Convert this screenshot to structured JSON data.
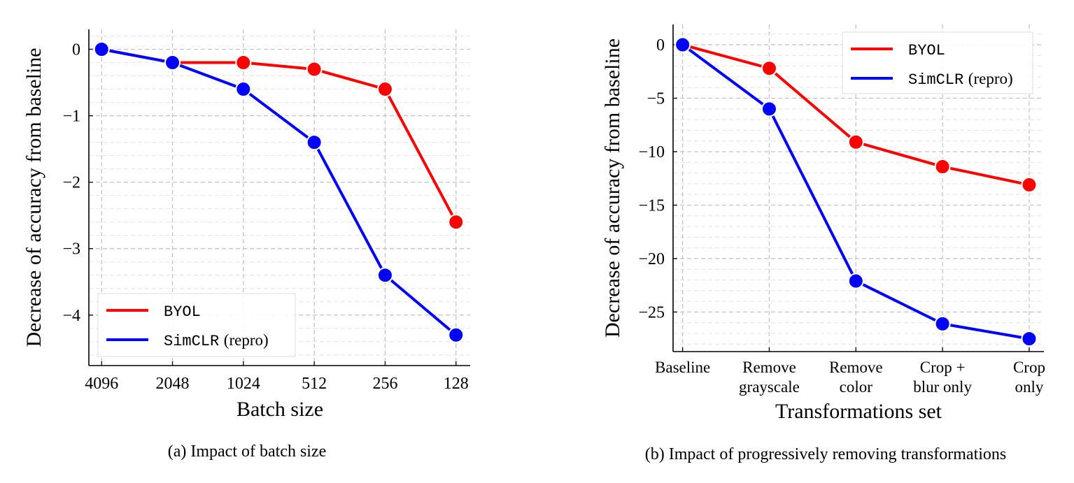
{
  "chart_data": [
    {
      "type": "line",
      "caption": "(a) Impact of batch size",
      "xlabel": "Batch size",
      "ylabel": "Decrease of accuracy from baseline",
      "categories": [
        "4096",
        "2048",
        "1024",
        "512",
        "256",
        "128"
      ],
      "yticks": [
        0,
        -1,
        -2,
        -3,
        -4
      ],
      "ytick_labels": [
        "0",
        "−1",
        "−2",
        "−3",
        "−4"
      ],
      "ylim": [
        -4.76,
        0.3
      ],
      "minor_step": 0.2,
      "grid": true,
      "legend": {
        "placement": "bottom-left"
      },
      "series": [
        {
          "name": "BYOL",
          "color": "#ff0000",
          "values": [
            0,
            -0.2,
            -0.2,
            -0.3,
            -0.6,
            -2.6
          ]
        },
        {
          "name": "SimCLR",
          "name_suffix": "(repro)",
          "color": "#0000ff",
          "values": [
            0,
            -0.2,
            -0.6,
            -1.4,
            -3.4,
            -4.3
          ]
        }
      ]
    },
    {
      "type": "line",
      "caption": "(b) Impact of progressively removing transformations",
      "xlabel": "Transformations set",
      "ylabel": "Decrease of accuracy from baseline",
      "categories": [
        [
          "Baseline"
        ],
        [
          "Remove",
          "grayscale"
        ],
        [
          "Remove",
          "color"
        ],
        [
          "Crop +",
          "blur only"
        ],
        [
          "Crop",
          "only"
        ]
      ],
      "yticks": [
        0,
        -5,
        -10,
        -15,
        -20,
        -25
      ],
      "ytick_labels": [
        "0",
        "−5",
        "−10",
        "−15",
        "−20",
        "−25"
      ],
      "ylim": [
        -28.7,
        1.9
      ],
      "minor_step": 1,
      "grid": true,
      "legend": {
        "placement": "top-right"
      },
      "series": [
        {
          "name": "BYOL",
          "color": "#ff0000",
          "values": [
            0,
            -2.2,
            -9.1,
            -11.4,
            -13.1
          ]
        },
        {
          "name": "SimCLR",
          "name_suffix": "(repro)",
          "color": "#0000ff",
          "values": [
            0,
            -6.0,
            -22.1,
            -26.1,
            -27.5
          ]
        }
      ]
    }
  ]
}
